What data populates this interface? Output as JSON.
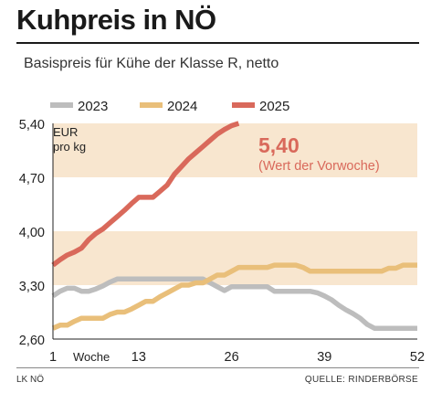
{
  "header": {
    "title": "Kuhpreis in NÖ",
    "subtitle": "Basispreis für Kühe der Klasse R, netto"
  },
  "footer": {
    "left": "LK NÖ",
    "right": "QUELLE: RINDERBÖRSE"
  },
  "colors": {
    "2023": "#bdbdbd",
    "2024": "#e9bf7a",
    "2025": "#d9695b",
    "band": "#f8e6cf",
    "highlight": "#d9695b"
  },
  "chart_data": {
    "type": "line",
    "ylim": [
      2.6,
      5.4
    ],
    "yticks": [
      2.6,
      3.3,
      4.0,
      4.7,
      5.4
    ],
    "ytick_labels": [
      "2,60",
      "3,30",
      "4,00",
      "4,70",
      "5,40"
    ],
    "xlim": [
      1,
      52
    ],
    "xticks": [
      1,
      13,
      26,
      39,
      52
    ],
    "xtick_labels": [
      "1",
      "13",
      "26",
      "39",
      "52"
    ],
    "xlabel": "Woche",
    "ylabel_line1": "EUR",
    "ylabel_line2": "pro kg",
    "bands": [
      [
        3.3,
        4.0
      ],
      [
        4.7,
        5.4
      ]
    ],
    "legend": [
      "2023",
      "2024",
      "2025"
    ],
    "annotation": {
      "value": "5,40",
      "text": "(Wert der Vorwoche)"
    },
    "series": [
      {
        "name": "2023",
        "values": [
          3.16,
          3.22,
          3.26,
          3.26,
          3.22,
          3.22,
          3.25,
          3.29,
          3.34,
          3.38,
          3.38,
          3.38,
          3.38,
          3.38,
          3.38,
          3.38,
          3.38,
          3.38,
          3.38,
          3.38,
          3.38,
          3.38,
          3.33,
          3.28,
          3.23,
          3.28,
          3.28,
          3.28,
          3.28,
          3.28,
          3.28,
          3.22,
          3.22,
          3.22,
          3.22,
          3.22,
          3.22,
          3.2,
          3.16,
          3.11,
          3.04,
          2.98,
          2.93,
          2.87,
          2.79,
          2.74,
          2.74,
          2.74,
          2.74,
          2.74,
          2.74,
          2.74
        ]
      },
      {
        "name": "2024",
        "values": [
          2.74,
          2.78,
          2.78,
          2.83,
          2.87,
          2.87,
          2.87,
          2.87,
          2.92,
          2.95,
          2.95,
          2.99,
          3.04,
          3.09,
          3.09,
          3.15,
          3.2,
          3.25,
          3.3,
          3.3,
          3.33,
          3.33,
          3.38,
          3.43,
          3.43,
          3.48,
          3.53,
          3.53,
          3.53,
          3.53,
          3.53,
          3.56,
          3.56,
          3.56,
          3.56,
          3.53,
          3.48,
          3.48,
          3.48,
          3.48,
          3.48,
          3.48,
          3.48,
          3.48,
          3.48,
          3.48,
          3.48,
          3.52,
          3.52,
          3.56,
          3.56,
          3.56
        ]
      },
      {
        "name": "2025",
        "values": [
          3.56,
          3.63,
          3.69,
          3.73,
          3.78,
          3.89,
          3.97,
          4.03,
          4.11,
          4.19,
          4.27,
          4.36,
          4.44,
          4.44,
          4.44,
          4.52,
          4.6,
          4.74,
          4.84,
          4.94,
          5.02,
          5.1,
          5.18,
          5.26,
          5.32,
          5.37,
          5.4
        ]
      }
    ]
  }
}
